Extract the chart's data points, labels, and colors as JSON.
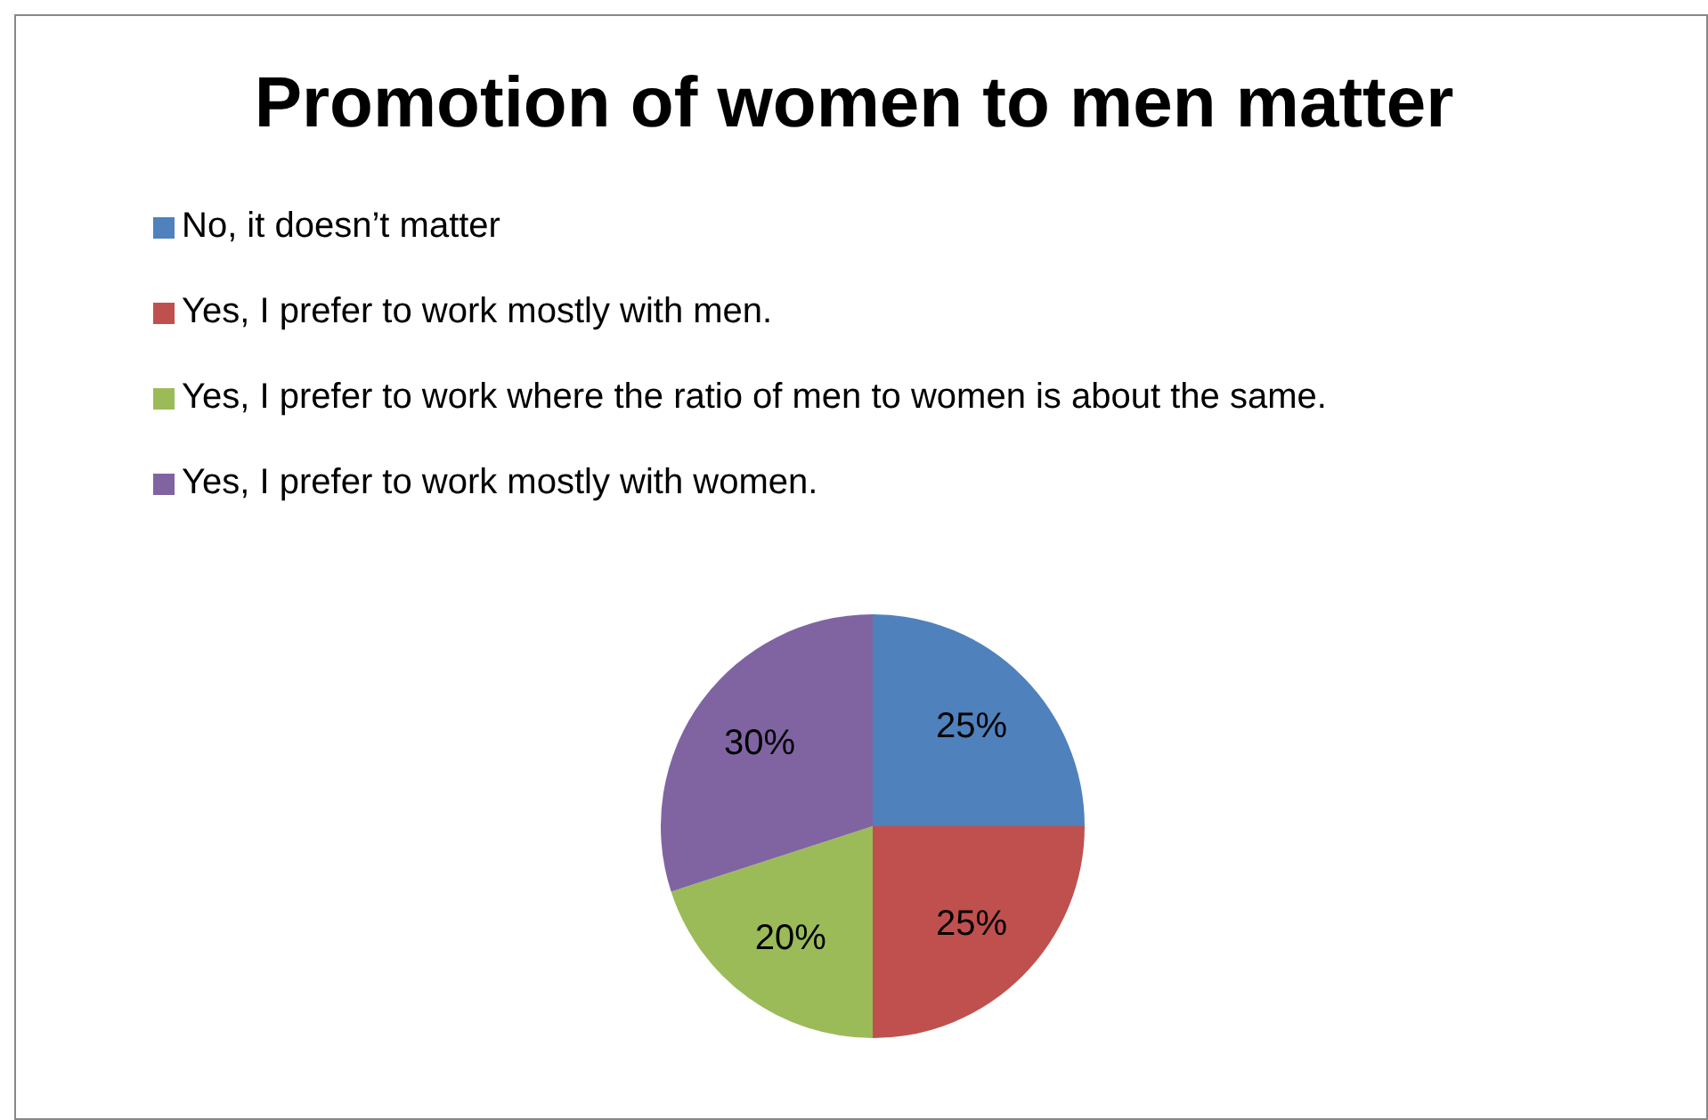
{
  "chart_data": {
    "type": "pie",
    "title": "Promotion of women to men matter",
    "categories": [
      "No, it doesn’t matter",
      "Yes, I prefer to work mostly with men.",
      "Yes, I prefer to work where the ratio of men to women is about the same.",
      "Yes, I prefer to work mostly with women."
    ],
    "values": [
      25,
      25,
      20,
      30
    ],
    "colors": [
      "#4f81bd",
      "#c0504d",
      "#9bbb59",
      "#8064a2"
    ],
    "value_labels": [
      "25%",
      "25%",
      "20%",
      "30%"
    ],
    "legend": "top left"
  }
}
